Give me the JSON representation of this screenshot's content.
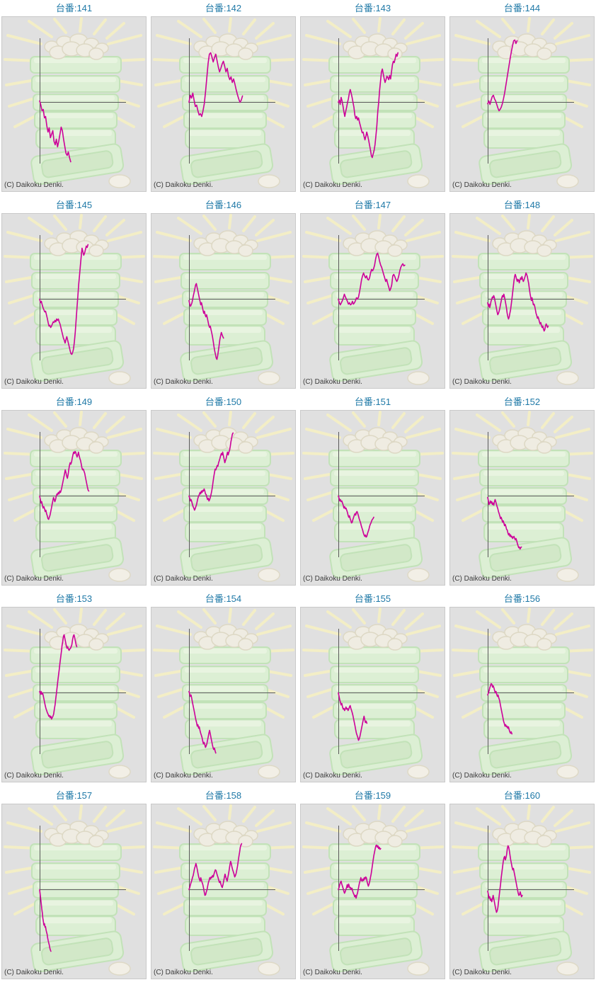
{
  "labels": {
    "title_prefix": "台番:",
    "copyright": "(C) Daikoku Denki."
  },
  "colors": {
    "title": "#1f79a7",
    "line": "#cc0099",
    "axis": "#5a5a5a",
    "panel_bg": "#e0e0e0",
    "panel_border": "#c9c9c9",
    "watermark_green": "#dcefd4",
    "watermark_green_edge": "#c2e2b8",
    "watermark_yellow": "#f3eec6",
    "watermark_ball": "#efece2"
  },
  "chart_data": {
    "type": "line",
    "title": "台番 slump graphs 141-160",
    "xlabel": "",
    "ylabel": "",
    "ylim": [
      -90,
      90
    ],
    "grid": false,
    "legend": "none",
    "series": [
      {
        "machine": "141",
        "title": "台番:141",
        "x_extent": 0.36,
        "values": [
          2,
          -4,
          -12,
          -10,
          -22,
          -20,
          -33,
          -42,
          -36,
          -50,
          -45,
          -40,
          -55,
          -60,
          -52,
          -63,
          -55,
          -45,
          -35,
          -40,
          -52,
          -62,
          -72,
          -75,
          -70,
          -78,
          -84
        ]
      },
      {
        "machine": "142",
        "title": "台番:142",
        "x_extent": 0.62,
        "values": [
          0,
          10,
          6,
          13,
          3,
          -6,
          -4,
          -12,
          -18,
          -16,
          -20,
          -12,
          -2,
          15,
          35,
          55,
          68,
          70,
          64,
          57,
          63,
          68,
          59,
          50,
          43,
          48,
          54,
          58,
          51,
          43,
          48,
          37,
          32,
          36,
          28,
          33,
          26,
          18,
          11,
          5,
          0,
          3,
          9
        ]
      },
      {
        "machine": "143",
        "title": "台番:143",
        "x_extent": 0.69,
        "values": [
          0,
          3,
          -3,
          7,
          2,
          -5,
          -13,
          -20,
          -13,
          -7,
          0,
          5,
          13,
          18,
          13,
          7,
          0,
          -7,
          -18,
          -23,
          -20,
          -25,
          -22,
          -28,
          -33,
          -38,
          -43,
          -42,
          -48,
          -53,
          -48,
          -42,
          -47,
          -53,
          -60,
          -67,
          -75,
          -78,
          -73,
          -68,
          -60,
          -47,
          -33,
          -13,
          0,
          17,
          30,
          43,
          47,
          40,
          33,
          28,
          32,
          37,
          35,
          32,
          38,
          33,
          43,
          53,
          58,
          56,
          62,
          68,
          65,
          70
        ]
      },
      {
        "machine": "144",
        "title": "台番:144",
        "x_extent": 0.34,
        "values": [
          -2,
          2,
          -3,
          3,
          8,
          10,
          5,
          2,
          -3,
          -8,
          -12,
          -10,
          -7,
          -2,
          5,
          13,
          23,
          33,
          43,
          53,
          63,
          72,
          80,
          87,
          88,
          83,
          87
        ]
      },
      {
        "machine": "145",
        "title": "台番:145",
        "x_extent": 0.56,
        "values": [
          0,
          -5,
          -3,
          -8,
          -12,
          -15,
          -18,
          -17,
          -22,
          -27,
          -33,
          -38,
          -37,
          -40,
          -38,
          -35,
          -32,
          -33,
          -30,
          -32,
          -28,
          -30,
          -28,
          -32,
          -35,
          -40,
          -45,
          -50,
          -55,
          -58,
          -62,
          -57,
          -53,
          -58,
          -63,
          -68,
          -73,
          -77,
          -78,
          -75,
          -70,
          -60,
          -47,
          -30,
          -13,
          3,
          20,
          33,
          47,
          60,
          72,
          67,
          62,
          65,
          70,
          75,
          73,
          77
        ]
      },
      {
        "machine": "146",
        "title": "台番:146",
        "x_extent": 0.4,
        "values": [
          -2,
          -7,
          -10,
          -8,
          -5,
          0,
          5,
          10,
          15,
          20,
          22,
          17,
          12,
          7,
          2,
          -3,
          -8,
          -5,
          -10,
          -15,
          -20,
          -17,
          -22,
          -25,
          -22,
          -27,
          -32,
          -37,
          -40,
          -38,
          -43,
          -48,
          -53,
          -60,
          -67,
          -73,
          -78,
          -83,
          -85,
          -80,
          -73,
          -65,
          -57,
          -52,
          -47,
          -50,
          -53,
          -55
        ]
      },
      {
        "machine": "147",
        "title": "台番:147",
        "x_extent": 0.77,
        "values": [
          0,
          -5,
          -8,
          -5,
          -2,
          2,
          7,
          3,
          0,
          -3,
          -7,
          -5,
          -8,
          -7,
          -3,
          -7,
          -5,
          -2,
          2,
          0,
          3,
          10,
          18,
          27,
          33,
          37,
          33,
          30,
          33,
          28,
          27,
          30,
          37,
          42,
          40,
          43,
          48,
          57,
          63,
          65,
          60,
          53,
          48,
          45,
          40,
          35,
          30,
          25,
          28,
          22,
          17,
          12,
          15,
          20,
          33,
          35,
          32,
          28,
          25,
          28,
          33,
          40,
          45,
          48,
          50,
          47,
          48
        ]
      },
      {
        "machine": "148",
        "title": "台番:148",
        "x_extent": 0.7,
        "values": [
          -5,
          -10,
          -7,
          -12,
          -8,
          -3,
          0,
          3,
          2,
          5,
          2,
          -3,
          -8,
          -13,
          -18,
          -22,
          -20,
          -17,
          -13,
          -8,
          -3,
          2,
          5,
          3,
          7,
          3,
          -2,
          -7,
          -13,
          -20,
          -25,
          -28,
          -25,
          -20,
          -15,
          -8,
          0,
          8,
          17,
          25,
          32,
          35,
          32,
          28,
          25,
          28,
          27,
          23,
          27,
          30,
          28,
          32,
          28,
          25,
          27,
          30,
          33,
          37,
          35,
          32,
          27,
          22,
          15,
          8,
          3,
          -2,
          2,
          -3,
          -8,
          -7,
          -10,
          -15,
          -20,
          -23,
          -27,
          -25,
          -28,
          -32,
          -35,
          -33,
          -37,
          -40,
          -38,
          -42,
          -45,
          -43,
          -38,
          -35,
          -37,
          -40,
          -38
        ]
      },
      {
        "machine": "149",
        "title": "台番:149",
        "x_extent": 0.57,
        "values": [
          0,
          -5,
          -10,
          -8,
          -13,
          -17,
          -15,
          -18,
          -22,
          -20,
          -25,
          -28,
          -32,
          -33,
          -30,
          -27,
          -22,
          -17,
          -12,
          -7,
          -2,
          -5,
          -8,
          -5,
          0,
          3,
          2,
          5,
          3,
          7,
          5,
          8,
          12,
          17,
          22,
          27,
          32,
          37,
          33,
          28,
          25,
          30,
          37,
          43,
          47,
          45,
          48,
          53,
          58,
          62,
          60,
          63,
          62,
          58,
          55,
          58,
          62,
          57,
          53,
          50,
          45,
          40,
          37,
          38,
          35,
          32,
          27,
          22,
          17,
          12,
          8,
          7
        ]
      },
      {
        "machine": "150",
        "title": "台番:150",
        "x_extent": 0.51,
        "values": [
          0,
          -3,
          -7,
          -5,
          -8,
          -12,
          -15,
          -17,
          -20,
          -18,
          -15,
          -12,
          -7,
          -3,
          0,
          2,
          5,
          3,
          7,
          5,
          8,
          7,
          10,
          7,
          3,
          2,
          -2,
          -5,
          -3,
          -7,
          -5,
          -2,
          2,
          7,
          13,
          20,
          27,
          33,
          38,
          37,
          40,
          43,
          42,
          47,
          50,
          53,
          57,
          60,
          58,
          62,
          57,
          52,
          47,
          50,
          53,
          58,
          62,
          58,
          62,
          65,
          70,
          77,
          82,
          87,
          89
        ]
      },
      {
        "machine": "151",
        "title": "台番:151",
        "x_extent": 0.41,
        "values": [
          0,
          -3,
          -7,
          -5,
          -8,
          -7,
          -10,
          -13,
          -17,
          -15,
          -18,
          -17,
          -20,
          -23,
          -27,
          -30,
          -28,
          -32,
          -35,
          -38,
          -37,
          -33,
          -30,
          -27,
          -25,
          -27,
          -23,
          -22,
          -25,
          -28,
          -32,
          -35,
          -38,
          -42,
          -45,
          -48,
          -52,
          -55,
          -57,
          -55,
          -58,
          -57,
          -53,
          -50,
          -47,
          -43,
          -40,
          -38,
          -35,
          -33,
          -32,
          -30
        ]
      },
      {
        "machine": "152",
        "title": "台番:152",
        "x_extent": 0.39,
        "values": [
          -2,
          -7,
          -12,
          -10,
          -7,
          -10,
          -8,
          -12,
          -10,
          -13,
          -8,
          -5,
          -8,
          -12,
          -15,
          -18,
          -22,
          -25,
          -28,
          -32,
          -30,
          -33,
          -37,
          -35,
          -38,
          -42,
          -40,
          -43,
          -47,
          -48,
          -52,
          -55,
          -53,
          -57,
          -55,
          -58,
          -57,
          -60,
          -58,
          -57,
          -60,
          -62,
          -60,
          -63,
          -67,
          -70,
          -73,
          -72,
          -75,
          -73,
          -72
        ]
      },
      {
        "machine": "153",
        "title": "台番:153",
        "x_extent": 0.43,
        "values": [
          2,
          -2,
          2,
          -2,
          0,
          -3,
          -8,
          -13,
          -18,
          -22,
          -25,
          -28,
          -30,
          -33,
          -32,
          -35,
          -33,
          -37,
          -35,
          -33,
          -30,
          -23,
          -17,
          -8,
          0,
          8,
          17,
          25,
          33,
          42,
          50,
          58,
          67,
          73,
          80,
          82,
          77,
          72,
          67,
          63,
          65,
          62,
          60,
          62,
          63,
          65,
          68,
          75,
          80,
          82,
          78,
          73,
          68,
          65
        ]
      },
      {
        "machine": "154",
        "title": "台番:154",
        "x_extent": 0.31,
        "values": [
          2,
          -2,
          -5,
          -3,
          -8,
          -13,
          -18,
          -23,
          -28,
          -33,
          -38,
          -42,
          -47,
          -45,
          -50,
          -48,
          -53,
          -57,
          -60,
          -63,
          -68,
          -72,
          -70,
          -73,
          -77,
          -75,
          -72,
          -67,
          -62,
          -57,
          -53,
          -58,
          -63,
          -68,
          -73,
          -77,
          -80,
          -78,
          -82,
          -85
        ]
      },
      {
        "machine": "155",
        "title": "台番:155",
        "x_extent": 0.33,
        "values": [
          0,
          -5,
          -10,
          -13,
          -17,
          -15,
          -20,
          -23,
          -22,
          -25,
          -23,
          -20,
          -23,
          -22,
          -25,
          -23,
          -20,
          -18,
          -22,
          -25,
          -28,
          -32,
          -37,
          -42,
          -47,
          -52,
          -57,
          -60,
          -63,
          -67,
          -65,
          -62,
          -57,
          -52,
          -47,
          -42,
          -37,
          -33,
          -38,
          -42,
          -40,
          -43
        ]
      },
      {
        "machine": "156",
        "title": "台番:156",
        "x_extent": 0.28,
        "values": [
          -3,
          0,
          3,
          7,
          10,
          13,
          12,
          8,
          10,
          7,
          3,
          0,
          2,
          -2,
          -5,
          -3,
          -7,
          -10,
          -15,
          -20,
          -25,
          -30,
          -35,
          -40,
          -43,
          -47,
          -45,
          -48,
          -47,
          -50,
          -48,
          -52,
          -55,
          -57,
          -55,
          -58
        ]
      },
      {
        "machine": "157",
        "title": "台番:157",
        "x_extent": 0.13,
        "values": [
          0,
          -7,
          -13,
          -20,
          -27,
          -33,
          -40,
          -45,
          -50,
          -48,
          -53,
          -52,
          -57,
          -60,
          -63,
          -68,
          -72,
          -75,
          -78,
          -82,
          -85,
          -87
        ]
      },
      {
        "machine": "158",
        "title": "台番:158",
        "x_extent": 0.61,
        "values": [
          0,
          3,
          7,
          10,
          13,
          17,
          20,
          25,
          30,
          33,
          37,
          33,
          28,
          23,
          18,
          15,
          12,
          17,
          13,
          10,
          7,
          2,
          -3,
          -8,
          -7,
          -3,
          0,
          5,
          10,
          13,
          17,
          15,
          18,
          17,
          20,
          18,
          22,
          25,
          28,
          27,
          23,
          20,
          17,
          13,
          10,
          12,
          8,
          5,
          3,
          7,
          12,
          17,
          22,
          18,
          15,
          12,
          17,
          22,
          28,
          35,
          40,
          37,
          32,
          28,
          25,
          22,
          18,
          20,
          23,
          28,
          33,
          40,
          47,
          53,
          60,
          63,
          65
        ]
      },
      {
        "machine": "159",
        "title": "台番:159",
        "x_extent": 0.49,
        "values": [
          0,
          3,
          7,
          10,
          12,
          8,
          5,
          2,
          -2,
          -5,
          -3,
          0,
          3,
          7,
          3,
          8,
          5,
          2,
          3,
          0,
          2,
          -2,
          -5,
          -7,
          -10,
          -8,
          -12,
          -8,
          -5,
          0,
          5,
          10,
          13,
          17,
          13,
          12,
          15,
          13,
          17,
          15,
          18,
          17,
          12,
          8,
          5,
          8,
          12,
          17,
          22,
          28,
          35,
          42,
          48,
          53,
          58,
          62,
          63,
          60,
          62,
          58,
          60,
          57,
          58
        ]
      },
      {
        "machine": "160",
        "title": "台番:160",
        "x_extent": 0.4,
        "values": [
          -2,
          -7,
          -12,
          -10,
          -15,
          -13,
          -17,
          -13,
          -8,
          -13,
          -18,
          -23,
          -28,
          -32,
          -30,
          -25,
          -17,
          -8,
          0,
          8,
          17,
          25,
          33,
          40,
          45,
          47,
          42,
          45,
          50,
          58,
          62,
          60,
          55,
          48,
          42,
          37,
          32,
          28,
          30,
          25,
          20,
          15,
          10,
          5,
          0,
          -5,
          -8,
          -7,
          -3,
          -7,
          -10,
          -8
        ]
      }
    ]
  }
}
